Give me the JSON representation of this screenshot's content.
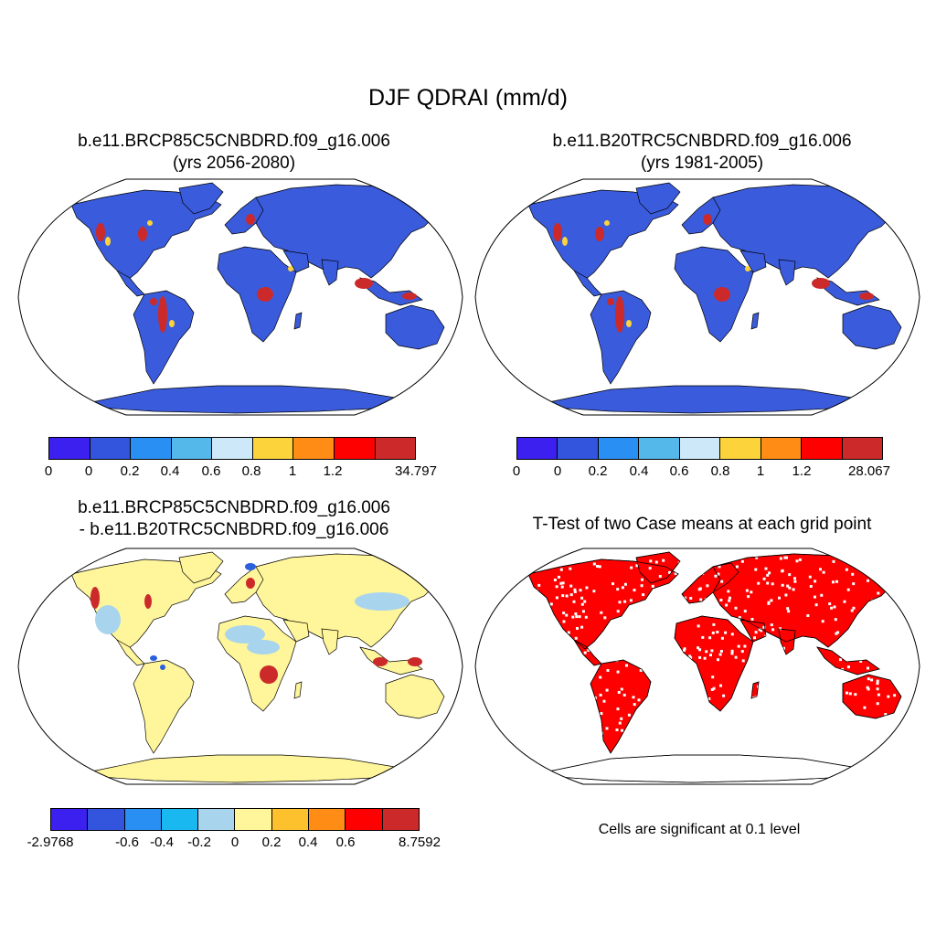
{
  "title": "DJF QDRAI (mm/d)",
  "panels": [
    {
      "title_line1": "b.e11.BRCP85C5CNBDRD.f09_g16.006",
      "title_line2": "(yrs 2056-2080)",
      "colorbar": {
        "colors": [
          "#3b20f0",
          "#3355dd",
          "#2a8ff2",
          "#55b8ea",
          "#cde8f8",
          "#fdd33c",
          "#ff8c14",
          "#ff0000",
          "#cc2a2a"
        ],
        "tick_labels": [
          "0",
          "0",
          "0.2",
          "0.4",
          "0.6",
          "0.8",
          "1",
          "1.2",
          "34.797"
        ]
      }
    },
    {
      "title_line1": "b.e11.B20TRC5CNBDRD.f09_g16.006",
      "title_line2": "(yrs 1981-2005)",
      "colorbar": {
        "colors": [
          "#3b20f0",
          "#3355dd",
          "#2a8ff2",
          "#55b8ea",
          "#cde8f8",
          "#fdd33c",
          "#ff8c14",
          "#ff0000",
          "#cc2a2a"
        ],
        "tick_labels": [
          "0",
          "0",
          "0.2",
          "0.4",
          "0.6",
          "0.8",
          "1",
          "1.2",
          "28.067"
        ]
      }
    },
    {
      "title_line1": "b.e11.BRCP85C5CNBDRD.f09_g16.006",
      "title_line2": "- b.e11.B20TRC5CNBDRD.f09_g16.006",
      "colorbar": {
        "colors": [
          "#3b20f0",
          "#3355dd",
          "#2a8ff2",
          "#1ab8f0",
          "#a8d4ee",
          "#fff59a",
          "#fdc12e",
          "#ff8c14",
          "#ff0000",
          "#cc2a2a"
        ],
        "tick_labels": [
          "-2.9768",
          "-0.6",
          "-0.4",
          "-0.2",
          "0",
          "0.2",
          "0.4",
          "0.6",
          "8.7592"
        ]
      }
    },
    {
      "title_line1": "T-Test of two Case means at each grid point",
      "note": "Cells are significant at 0.1 level",
      "significance_color": "#ff0000"
    }
  ],
  "map_fill": {
    "panel1_land": "#3a5bdb",
    "panel2_land": "#3a5bdb",
    "panel3_land": "#fff59a",
    "panel3_secondary": "#a8d4ee",
    "hotspot": "#cc2a2a",
    "warm": "#fdd33c"
  }
}
